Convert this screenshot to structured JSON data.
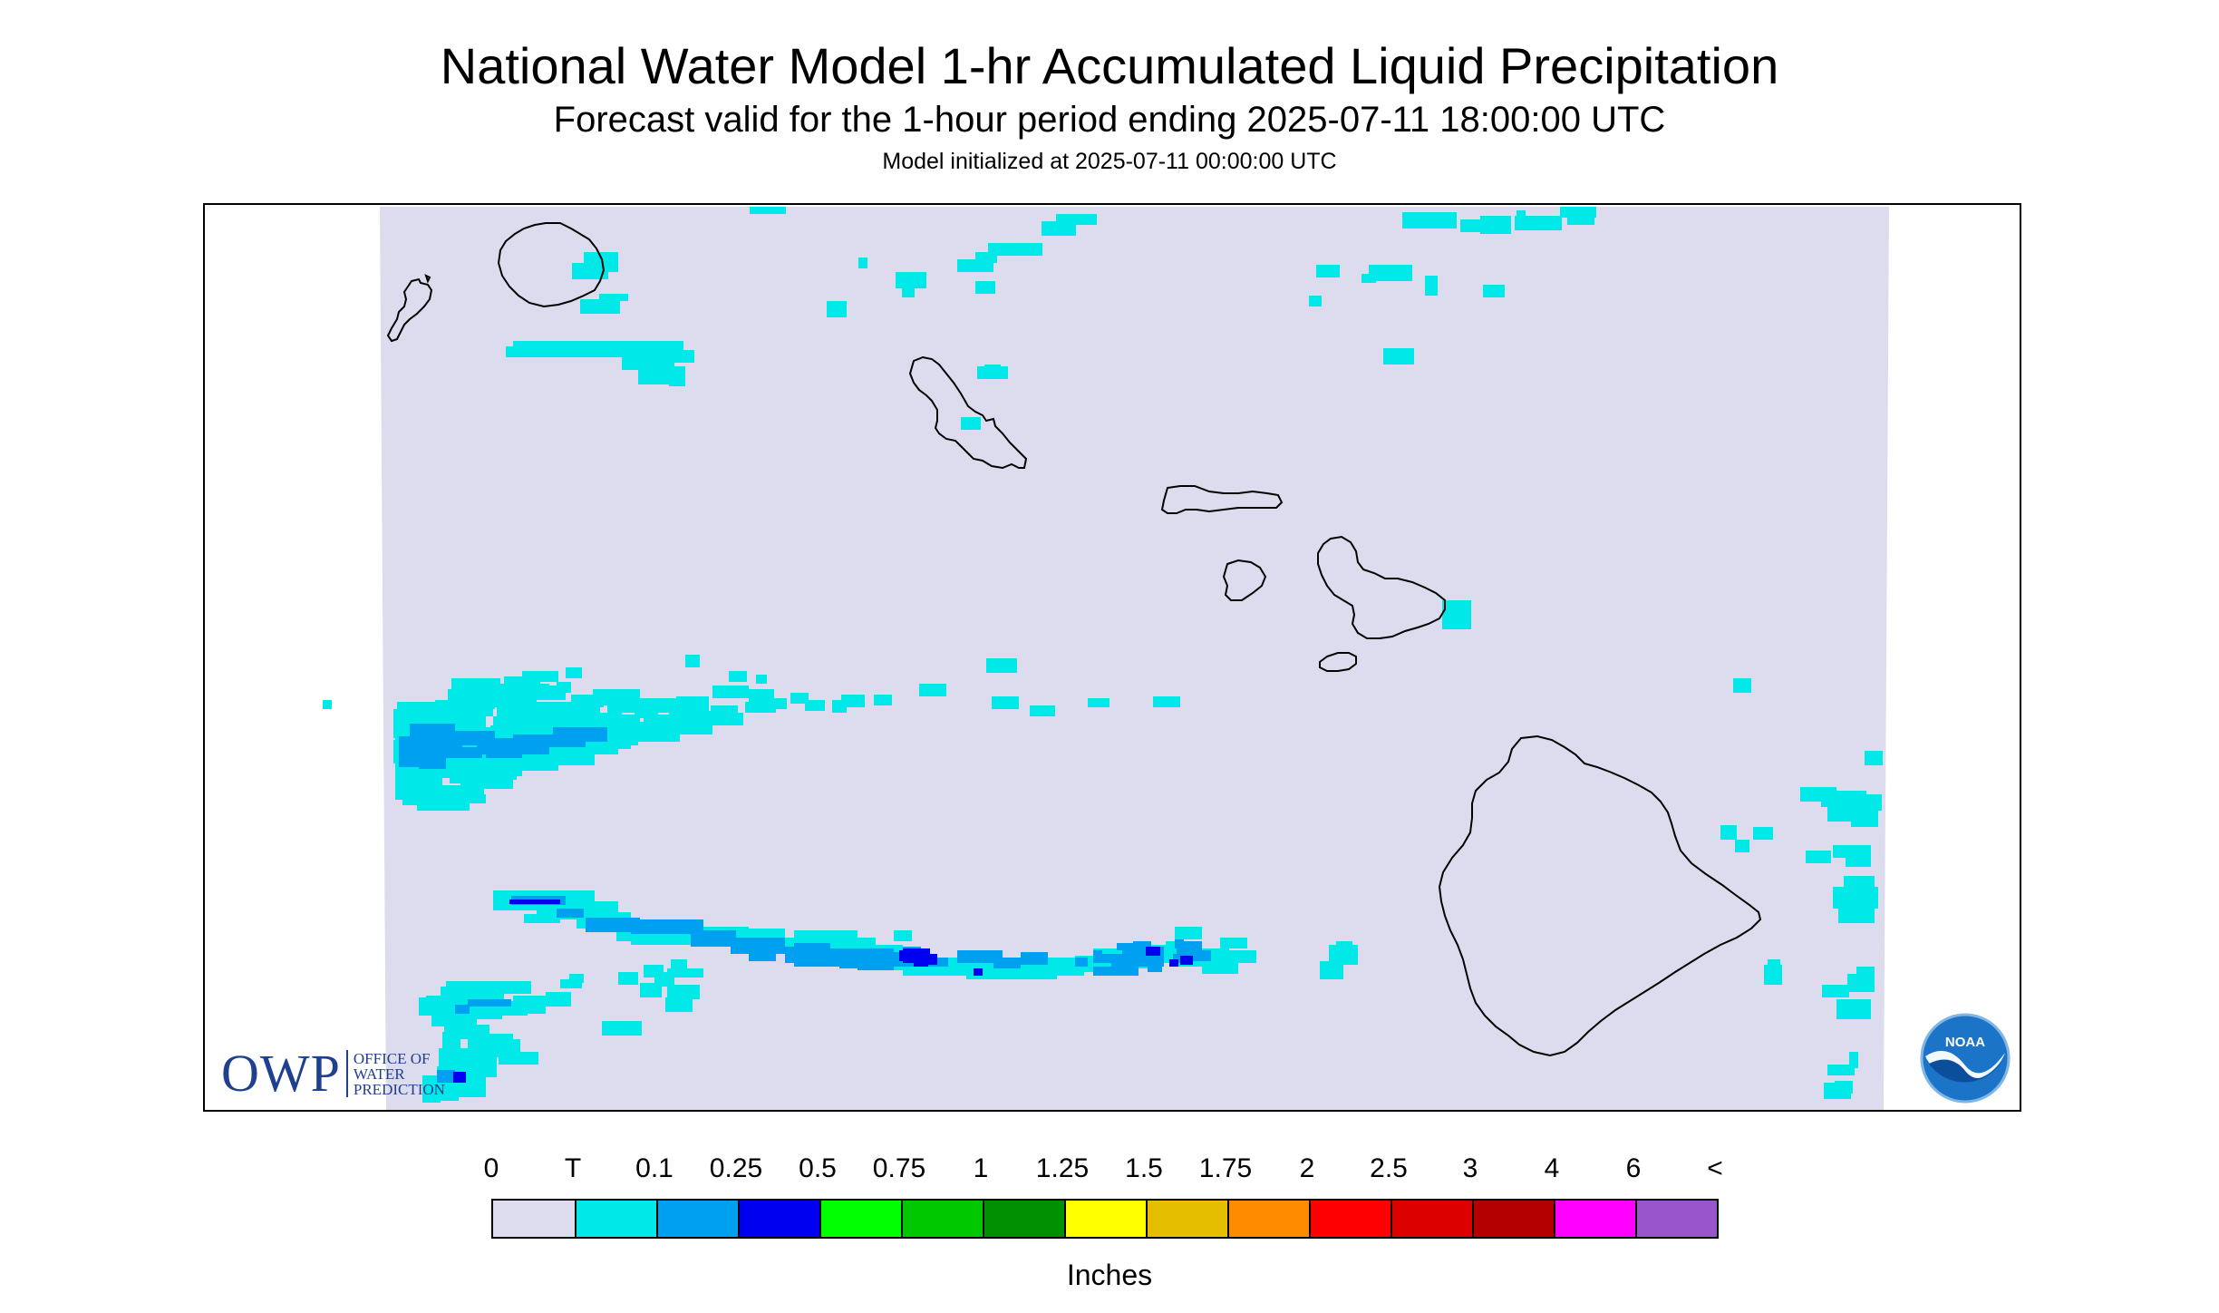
{
  "title": "National Water Model 1-hr Accumulated Liquid Precipitation",
  "subtitle": "Forecast valid for the 1-hour period ending 2025-07-11 18:00:00 UTC",
  "init_line": "Model initialized at 2025-07-11 00:00:00 UTC",
  "units_label": "Inches",
  "legend": {
    "labels": [
      "0",
      "T",
      "0.1",
      "0.25",
      "0.5",
      "0.75",
      "1",
      "1.25",
      "1.5",
      "1.75",
      "2",
      "2.5",
      "3",
      "4",
      "6",
      "<"
    ],
    "colors": [
      "#dcdcee",
      "#00e8e8",
      "#00a0f0",
      "#0000f0",
      "#00ff00",
      "#00c800",
      "#009000",
      "#ffff00",
      "#e6be00",
      "#ff8c00",
      "#ff0000",
      "#dc0000",
      "#b40000",
      "#ff00ff",
      "#9955cc"
    ]
  },
  "map": {
    "background_color": "#dcdcee",
    "coastline_color": "#000000",
    "islands": [
      "Niihau",
      "Kauai",
      "Oahu",
      "Molokai",
      "Lanai",
      "Maui",
      "Kahoolawe",
      "Hawaii"
    ]
  },
  "logos": {
    "owp_letters": "OWP",
    "owp_text": [
      "OFFICE OF",
      "WATER",
      "PREDICTION"
    ],
    "noaa_text": "NOAA"
  }
}
